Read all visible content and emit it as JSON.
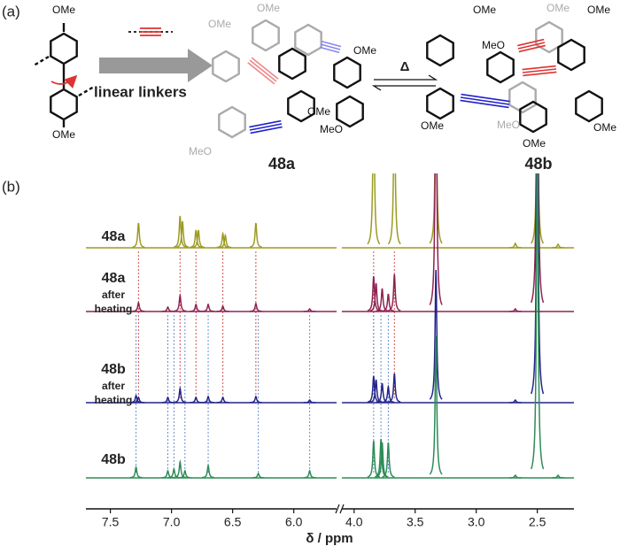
{
  "panel_labels": {
    "a": "(a)",
    "b": "(b)"
  },
  "scheme": {
    "linker_label": "linear linkers",
    "heat_symbol": "Δ",
    "compounds": [
      "48a",
      "48b"
    ],
    "substituents": [
      "OMe",
      "OMe",
      "OMe",
      "OMe",
      "OMe",
      "MeO",
      "OMe",
      "MeO",
      "OMe",
      "MeO",
      "OMe",
      "OMe",
      "OMe",
      "MeO",
      "OMe",
      "OMe"
    ]
  },
  "chart_data": {
    "type": "nmr",
    "x_label": "δ / ppm",
    "xlim": [
      [
        7.7,
        5.65
      ],
      [
        4.1,
        2.2
      ]
    ],
    "xticks": [
      7.5,
      {
        "value": 7,
        "label": "7.0"
      },
      6.5,
      {
        "value": 6,
        "label": "6.0"
      },
      {
        "value": 4,
        "label": "4.0"
      },
      3.5,
      {
        "value": 3,
        "label": "3.0"
      },
      2.5
    ],
    "series": [
      {
        "name": "48a",
        "color": "#9b9b22",
        "peaks": [
          7.27,
          6.93,
          6.91,
          6.8,
          6.78,
          6.58,
          6.56,
          6.31,
          3.84,
          3.67,
          3.33,
          2.5,
          2.68,
          2.33
        ],
        "heights": [
          28,
          36,
          30,
          20,
          20,
          16,
          14,
          28,
          170,
          170,
          200,
          200,
          5,
          4
        ]
      },
      {
        "name": "48a",
        "condition": [
          "after",
          "heating"
        ],
        "color": "#8e2352",
        "peaks": [
          7.27,
          7.03,
          6.93,
          6.8,
          6.7,
          6.58,
          6.31,
          5.87,
          3.84,
          3.82,
          3.77,
          3.72,
          3.67,
          3.33,
          2.5,
          2.68
        ],
        "heights": [
          10,
          5,
          18,
          8,
          8,
          6,
          9,
          3,
          40,
          32,
          26,
          20,
          42,
          300,
          400,
          3
        ]
      },
      {
        "name": "48b",
        "condition": [
          "after",
          "heating"
        ],
        "color": "#24248a",
        "peaks": [
          7.29,
          7.27,
          7.03,
          6.93,
          6.8,
          6.7,
          6.58,
          6.31,
          5.87,
          3.84,
          3.82,
          3.77,
          3.72,
          3.67,
          3.33,
          2.5,
          2.68
        ],
        "heights": [
          8,
          6,
          6,
          16,
          6,
          7,
          6,
          7,
          3,
          30,
          26,
          22,
          18,
          33,
          150,
          400,
          3
        ]
      },
      {
        "name": "48b",
        "color": "#2e8b57",
        "peaks": [
          7.29,
          7.03,
          6.98,
          6.93,
          6.89,
          6.7,
          6.29,
          5.87,
          3.84,
          3.78,
          3.77,
          3.72,
          3.33,
          2.5,
          2.68,
          2.33
        ],
        "heights": [
          12,
          8,
          10,
          18,
          8,
          14,
          5,
          8,
          42,
          44,
          40,
          40,
          160,
          400,
          3,
          3
        ]
      }
    ],
    "guides": [
      {
        "color": "#d05050",
        "x": [
          7.27,
          6.93,
          6.8,
          6.58,
          6.31,
          3.84,
          3.67
        ]
      },
      {
        "color": "#6a8fd0",
        "x": [
          7.29,
          7.03,
          6.98,
          6.89,
          6.7,
          6.29,
          5.87,
          3.84,
          3.78,
          3.72
        ]
      }
    ]
  }
}
